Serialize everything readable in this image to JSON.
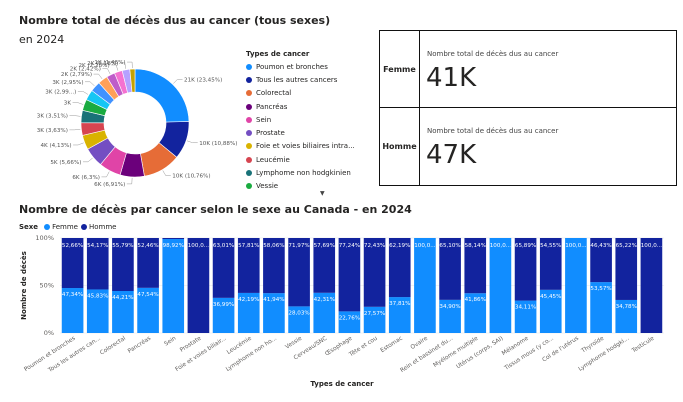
{
  "donut": {
    "title": "Nombre total de décès dus au cancer (tous sexes)",
    "subtitle": "en 2024",
    "legend_title": "Types de cancer",
    "labels": [
      "21K (23,45%)",
      "10K (10,88%)",
      "10K (10,76%)",
      "6K (6,91%)",
      "6K (6,3%)",
      "5K (5,66%)",
      "4K (4,13%)",
      "3K (3,63%)",
      "3K (3,51%)",
      "3K",
      "3K (2,99...)",
      "3K (2,95%)",
      "2K (2,79%)",
      "2K (2,42%)",
      "2K (2,28%)",
      "2K (2,18%)",
      "1K (1,46%)"
    ]
  },
  "kpi": {
    "rows": [
      {
        "sex": "Femme",
        "label": "Nombre total de décès dus au cancer",
        "value": "41K"
      },
      {
        "sex": "Homme",
        "label": "Nombre total de décès dus au cancer",
        "value": "47K"
      }
    ]
  },
  "bar": {
    "title": "Nombre de décès par cancer selon le sexe au Canada - en 2024",
    "legend_label": "Sexe",
    "series_names": [
      "Femme",
      "Homme"
    ],
    "ylabel": "Nombre de décès",
    "xlabel": "Types de cancer",
    "ticks": [
      "100%",
      "50%",
      "0%"
    ]
  },
  "chart_data": [
    {
      "type": "pie",
      "title": "Nombre total de décès dus au cancer (tous sexes)",
      "subtitle": "en 2024",
      "categories": [
        "Poumon et bronches",
        "Tous les autres cancers",
        "Colorectal",
        "Pancréas",
        "Sein",
        "Prostate",
        "Foie et voies biliaires intra...",
        "Leucémie",
        "Lymphome non hodgkinien",
        "Vessie",
        "",
        "",
        "",
        "",
        "",
        "",
        ""
      ],
      "values": [
        23.45,
        10.88,
        10.76,
        6.91,
        6.3,
        5.66,
        4.13,
        3.63,
        3.51,
        3.2,
        2.99,
        2.95,
        2.79,
        2.42,
        2.28,
        2.18,
        1.46
      ],
      "colors": [
        "#118DFF",
        "#12239E",
        "#E66C37",
        "#6B007B",
        "#E044A7",
        "#744EC2",
        "#D9B300",
        "#D64550",
        "#197278",
        "#1AAB40",
        "#15C6F4",
        "#4092FF",
        "#FFA058",
        "#BE5DC9",
        "#F472D0",
        "#B5A1FF",
        "#C4A200"
      ]
    },
    {
      "type": "bar",
      "stacked": "100%",
      "title": "Nombre de décès par cancer selon le sexe au Canada - en 2024",
      "xlabel": "Types de cancer",
      "ylabel": "Nombre de décès",
      "ylim": [
        0,
        100
      ],
      "legend_placement": "top-left",
      "categories": [
        "Poumon et bronches",
        "Tous les autres can...",
        "Colorectal",
        "Pancréas",
        "Sein",
        "Prostate",
        "Foie et voies biliair...",
        "Leucémie",
        "Lymphome non ho...",
        "Vessie",
        "Cerveau/SNC",
        "Œsophage",
        "Tête et cou",
        "Estomac",
        "Ovaire",
        "Rein et bassinet du...",
        "Myélome multiple",
        "Utérus (corps, SAI)",
        "Mélanome",
        "Tissus mous (y co...",
        "Col de l'utérus",
        "Thyroïde",
        "Lymphome hodgki...",
        "Testicule"
      ],
      "series": [
        {
          "name": "Femme",
          "color": "#118DFF",
          "values": [
            47.34,
            45.83,
            44.21,
            47.54,
            98.92,
            0,
            36.99,
            42.19,
            41.94,
            28.03,
            42.31,
            22.76,
            27.57,
            37.81,
            100,
            34.9,
            41.86,
            100,
            34.11,
            45.45,
            100,
            53.57,
            34.78,
            0
          ],
          "labels": [
            "47,34%",
            "45,83%",
            "44,21%",
            "47,54%",
            "98,92%",
            "",
            "36,99%",
            "42,19%",
            "41,94%",
            "28,03%",
            "42,31%",
            "22,76%",
            "27,57%",
            "37,81%",
            "100,0...",
            "34,90%",
            "41,86%",
            "100,0...",
            "34,11%",
            "45,45%",
            "100,0...",
            "53,57%",
            "34,78%",
            ""
          ]
        },
        {
          "name": "Homme",
          "color": "#12239E",
          "values": [
            52.66,
            54.17,
            55.79,
            52.46,
            1.08,
            100,
            63.01,
            57.81,
            58.06,
            71.97,
            57.69,
            77.24,
            72.43,
            62.19,
            0,
            65.1,
            58.14,
            0,
            65.89,
            54.55,
            0,
            46.43,
            65.22,
            100
          ],
          "labels": [
            "52,66%",
            "54,17%",
            "55,79%",
            "52,46%",
            "",
            "100,0...",
            "63,01%",
            "57,81%",
            "58,06%",
            "71,97%",
            "57,69%",
            "77,24%",
            "72,43%",
            "62,19%",
            "",
            "65,10%",
            "58,14%",
            "",
            "65,89%",
            "54,55%",
            "",
            "46,43%",
            "65,22%",
            "100,0..."
          ]
        }
      ]
    }
  ]
}
